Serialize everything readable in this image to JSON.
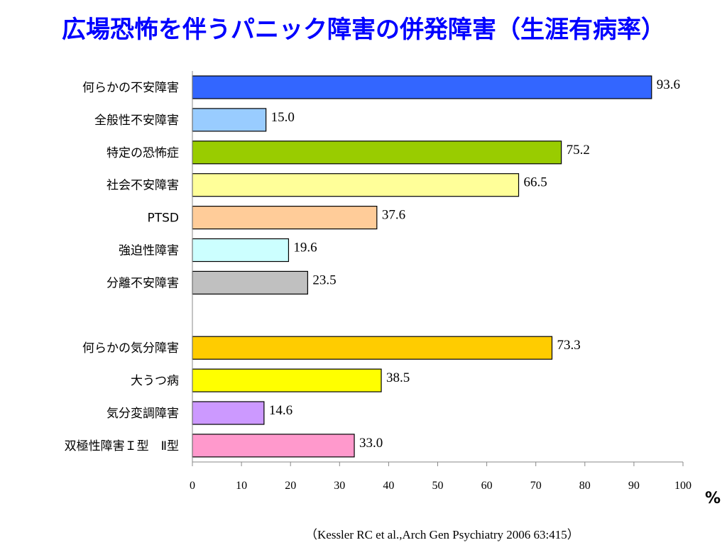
{
  "title": "広場恐怖を伴うパニック障害の併発障害（生涯有病率）",
  "citation": "（Kessler RC et al.,Arch Gen Psychiatry 2006 63:415）",
  "chart_data": {
    "type": "bar",
    "orientation": "horizontal",
    "categories": [
      "何らかの不安障害",
      "全般性不安障害",
      "特定の恐怖症",
      "社会不安障害",
      "PTSD",
      "強迫性障害",
      "分離不安障害",
      "",
      "何らかの気分障害",
      "大うつ病",
      "気分変調障害",
      "双極性障害Ｉ型　Ⅱ型"
    ],
    "values": [
      93.6,
      15.0,
      75.2,
      66.5,
      37.6,
      19.6,
      23.5,
      null,
      73.3,
      38.5,
      14.6,
      33.0
    ],
    "value_labels": [
      "93.6",
      "15.0",
      "75.2",
      "66.5",
      "37.6",
      "19.6",
      "23.5",
      "",
      "73.3",
      "38.5",
      "14.6",
      "33.0"
    ],
    "colors": [
      "#3366ff",
      "#99ccff",
      "#99cc00",
      "#ffff99",
      "#ffcc99",
      "#ccffff",
      "#c0c0c0",
      "",
      "#ffcc00",
      "#ffff00",
      "#cc99ff",
      "#ff99cc"
    ],
    "xlim": [
      0,
      100
    ],
    "xticks": [
      "0",
      "10",
      "20",
      "30",
      "40",
      "50",
      "60",
      "70",
      "80",
      "90",
      "100"
    ],
    "xunit": "%",
    "grid": false
  }
}
